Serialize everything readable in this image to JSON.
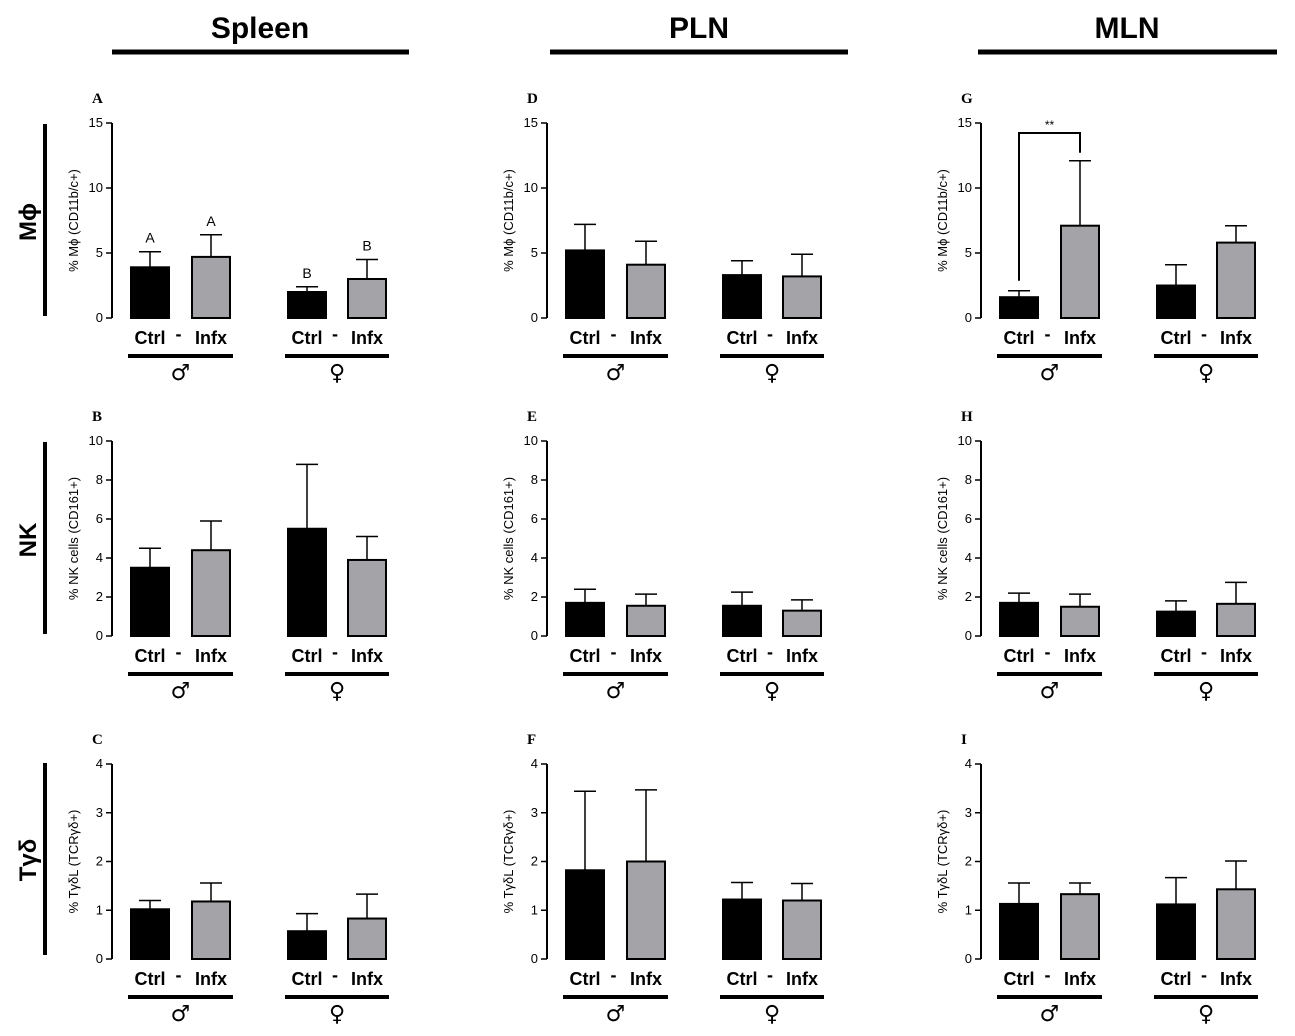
{
  "columns": [
    {
      "title": "Spleen"
    },
    {
      "title": "PLN"
    },
    {
      "title": "MLN"
    }
  ],
  "rows": [
    {
      "label": "Mϕ"
    },
    {
      "label": "NK"
    },
    {
      "label": "Tγδ"
    }
  ],
  "group_labels": {
    "ctrl": "Ctrl",
    "dash": "-",
    "infx": "Infx",
    "male": "♂",
    "female": "♀"
  },
  "colors": {
    "ctrl": "#000000",
    "infx": "#a3a3a8"
  },
  "chart_data": [
    {
      "panel": "A",
      "type": "bar",
      "ylabel": "% Mϕ (CD11b/c+)",
      "ylim": [
        0,
        15
      ],
      "ticks": [
        0,
        5,
        10,
        15
      ],
      "bars": [
        {
          "group": "♂ Ctrl",
          "mean": 3.9,
          "err": 1.2,
          "letter": "A"
        },
        {
          "group": "♂ Infx",
          "mean": 4.7,
          "err": 1.7,
          "letter": "A"
        },
        {
          "group": "♀ Ctrl",
          "mean": 2.0,
          "err": 0.4,
          "letter": "B"
        },
        {
          "group": "♀ Infx",
          "mean": 3.0,
          "err": 1.5,
          "letter": "B"
        }
      ]
    },
    {
      "panel": "B",
      "type": "bar",
      "ylabel": "% NK cells (CD161+)",
      "ylim": [
        0,
        10
      ],
      "ticks": [
        0,
        2,
        4,
        6,
        8,
        10
      ],
      "bars": [
        {
          "group": "♂ Ctrl",
          "mean": 3.5,
          "err": 1.0
        },
        {
          "group": "♂ Infx",
          "mean": 4.4,
          "err": 1.5
        },
        {
          "group": "♀ Ctrl",
          "mean": 5.5,
          "err": 3.3
        },
        {
          "group": "♀ Infx",
          "mean": 3.9,
          "err": 1.2
        }
      ]
    },
    {
      "panel": "C",
      "type": "bar",
      "ylabel": "% TγδL (TCRγδ+)",
      "ylim": [
        0,
        4
      ],
      "ticks": [
        0,
        1,
        2,
        3,
        4
      ],
      "bars": [
        {
          "group": "♂ Ctrl",
          "mean": 1.02,
          "err": 0.18
        },
        {
          "group": "♂ Infx",
          "mean": 1.18,
          "err": 0.38
        },
        {
          "group": "♀ Ctrl",
          "mean": 0.57,
          "err": 0.36
        },
        {
          "group": "♀ Infx",
          "mean": 0.83,
          "err": 0.5
        }
      ]
    },
    {
      "panel": "D",
      "type": "bar",
      "ylabel": "% Mϕ (CD11b/c+)",
      "ylim": [
        0,
        15
      ],
      "ticks": [
        0,
        5,
        10,
        15
      ],
      "bars": [
        {
          "group": "♂ Ctrl",
          "mean": 5.2,
          "err": 2.0
        },
        {
          "group": "♂ Infx",
          "mean": 4.1,
          "err": 1.8
        },
        {
          "group": "♀ Ctrl",
          "mean": 3.3,
          "err": 1.1
        },
        {
          "group": "♀ Infx",
          "mean": 3.2,
          "err": 1.7
        }
      ]
    },
    {
      "panel": "E",
      "type": "bar",
      "ylabel": "% NK cells (CD161+)",
      "ylim": [
        0,
        10
      ],
      "ticks": [
        0,
        2,
        4,
        6,
        8,
        10
      ],
      "bars": [
        {
          "group": "♂ Ctrl",
          "mean": 1.7,
          "err": 0.7
        },
        {
          "group": "♂ Infx",
          "mean": 1.55,
          "err": 0.6
        },
        {
          "group": "♀ Ctrl",
          "mean": 1.55,
          "err": 0.7
        },
        {
          "group": "♀ Infx",
          "mean": 1.3,
          "err": 0.55
        }
      ]
    },
    {
      "panel": "F",
      "type": "bar",
      "ylabel": "% TγδL (TCRγδ+)",
      "ylim": [
        0,
        4
      ],
      "ticks": [
        0,
        1,
        2,
        3,
        4
      ],
      "bars": [
        {
          "group": "♂ Ctrl",
          "mean": 1.82,
          "err": 1.62
        },
        {
          "group": "♂ Infx",
          "mean": 2.0,
          "err": 1.47
        },
        {
          "group": "♀ Ctrl",
          "mean": 1.22,
          "err": 0.35
        },
        {
          "group": "♀ Infx",
          "mean": 1.2,
          "err": 0.35
        }
      ]
    },
    {
      "panel": "G",
      "type": "bar",
      "ylabel": "% Mϕ (CD11b/c+)",
      "ylim": [
        0,
        15
      ],
      "ticks": [
        0,
        5,
        10,
        15
      ],
      "bars": [
        {
          "group": "♂ Ctrl",
          "mean": 1.6,
          "err": 0.5
        },
        {
          "group": "♂ Infx",
          "mean": 7.1,
          "err": 5.0
        },
        {
          "group": "♀ Ctrl",
          "mean": 2.5,
          "err": 1.6
        },
        {
          "group": "♀ Infx",
          "mean": 5.8,
          "err": 1.3
        }
      ],
      "significance": {
        "from": 0,
        "to": 1,
        "label": "**"
      }
    },
    {
      "panel": "H",
      "type": "bar",
      "ylabel": "% NK cells (CD161+)",
      "ylim": [
        0,
        10
      ],
      "ticks": [
        0,
        2,
        4,
        6,
        8,
        10
      ],
      "bars": [
        {
          "group": "♂ Ctrl",
          "mean": 1.7,
          "err": 0.5
        },
        {
          "group": "♂ Infx",
          "mean": 1.5,
          "err": 0.65
        },
        {
          "group": "♀ Ctrl",
          "mean": 1.25,
          "err": 0.55
        },
        {
          "group": "♀ Infx",
          "mean": 1.65,
          "err": 1.1
        }
      ]
    },
    {
      "panel": "I",
      "type": "bar",
      "ylabel": "% TγδL (TCRγδ+)",
      "ylim": [
        0,
        4
      ],
      "ticks": [
        0,
        1,
        2,
        3,
        4
      ],
      "bars": [
        {
          "group": "♂ Ctrl",
          "mean": 1.13,
          "err": 0.43
        },
        {
          "group": "♂ Infx",
          "mean": 1.33,
          "err": 0.23
        },
        {
          "group": "♀ Ctrl",
          "mean": 1.12,
          "err": 0.55
        },
        {
          "group": "♀ Infx",
          "mean": 1.43,
          "err": 0.58
        }
      ]
    }
  ]
}
